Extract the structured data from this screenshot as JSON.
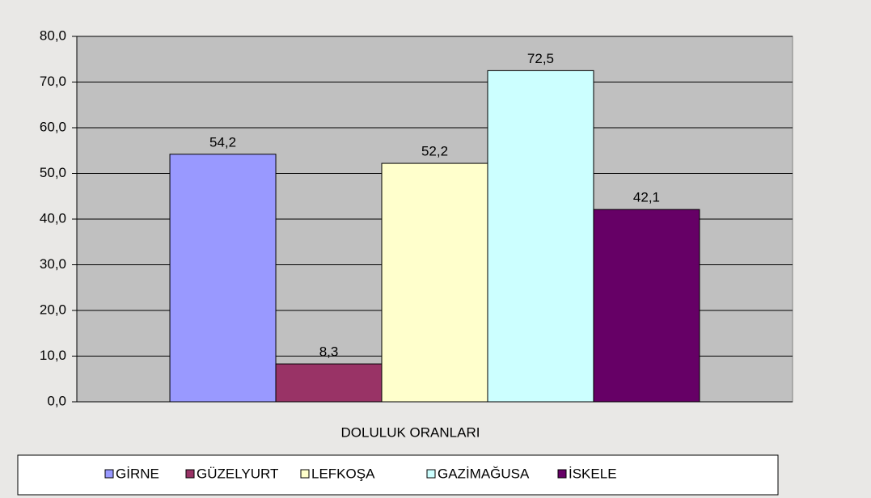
{
  "chart_data": {
    "type": "bar",
    "categories": [
      "DOLULUK ORANLARI"
    ],
    "series": [
      {
        "name": "GİRNE",
        "color": "#9999ff",
        "values": [
          54.2
        ],
        "value_labels": [
          "54,2"
        ]
      },
      {
        "name": "GÜZELYURT",
        "color": "#993366",
        "values": [
          8.3
        ],
        "value_labels": [
          "8,3"
        ]
      },
      {
        "name": "LEFKOŞA",
        "color": "#ffffcc",
        "values": [
          52.2
        ],
        "value_labels": [
          "52,2"
        ]
      },
      {
        "name": "GAZİMAĞUSA",
        "color": "#ccffff",
        "values": [
          72.5
        ],
        "value_labels": [
          "72,5"
        ]
      },
      {
        "name": "İSKELE",
        "color": "#660066",
        "values": [
          42.1
        ],
        "value_labels": [
          "42,1"
        ]
      }
    ],
    "ylim": [
      0,
      80
    ],
    "yticks": [
      {
        "value": 0,
        "label": "0,0"
      },
      {
        "value": 10,
        "label": "10,0"
      },
      {
        "value": 20,
        "label": "20,0"
      },
      {
        "value": 30,
        "label": "30,0"
      },
      {
        "value": 40,
        "label": "40,0"
      },
      {
        "value": 50,
        "label": "50,0"
      },
      {
        "value": 60,
        "label": "60,0"
      },
      {
        "value": 70,
        "label": "70,0"
      },
      {
        "value": 80,
        "label": "80,0"
      }
    ],
    "grid": true,
    "legend": "bottom"
  }
}
